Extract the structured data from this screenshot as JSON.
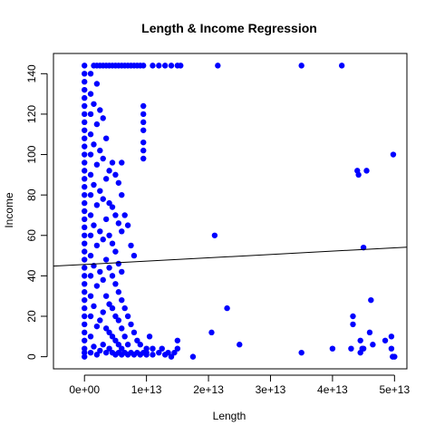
{
  "chart_data": {
    "type": "scatter",
    "title": "Length & Income Regression",
    "xlabel": "Length",
    "ylabel": "Income",
    "xlim": [
      -5000000000000.0,
      52000000000000.0
    ],
    "ylim": [
      -6,
      150
    ],
    "x_ticks": [
      0,
      10000000000000.0,
      20000000000000.0,
      30000000000000.0,
      40000000000000.0,
      50000000000000.0
    ],
    "x_tick_labels": [
      "0e+00",
      "1e+13",
      "2e+13",
      "3e+13",
      "4e+13",
      "5e+13"
    ],
    "y_ticks": [
      0,
      20,
      40,
      60,
      80,
      100,
      120,
      140
    ],
    "y_tick_labels": [
      "0",
      "20",
      "40",
      "60",
      "80",
      "100",
      "120",
      "140"
    ],
    "grid": false,
    "legend": "none",
    "point_color": "#0000ff",
    "line_color": "#000000",
    "regression_line": {
      "x": [
        -5000000000000.0,
        52000000000000.0
      ],
      "y": [
        44.8,
        54.2
      ]
    },
    "series": [
      {
        "points": [
          [
            0,
            0
          ],
          [
            0,
            2
          ],
          [
            0,
            4
          ],
          [
            0,
            8
          ],
          [
            0,
            12
          ],
          [
            0,
            16
          ],
          [
            0,
            20
          ],
          [
            0,
            24
          ],
          [
            0,
            28
          ],
          [
            0,
            32
          ],
          [
            0,
            36
          ],
          [
            0,
            40
          ],
          [
            0,
            44
          ],
          [
            0,
            48
          ],
          [
            0,
            52
          ],
          [
            0,
            56
          ],
          [
            0,
            60
          ],
          [
            0,
            64
          ],
          [
            0,
            68
          ],
          [
            0,
            72
          ],
          [
            0,
            76
          ],
          [
            0,
            80
          ],
          [
            0,
            84
          ],
          [
            0,
            88
          ],
          [
            0,
            92
          ],
          [
            0,
            96
          ],
          [
            0,
            100
          ],
          [
            0,
            104
          ],
          [
            0,
            108
          ],
          [
            0,
            112
          ],
          [
            0,
            116
          ],
          [
            0,
            120
          ],
          [
            0,
            124
          ],
          [
            0,
            128
          ],
          [
            0,
            132
          ],
          [
            0,
            136
          ],
          [
            0,
            140
          ],
          [
            0,
            144
          ],
          [
            1000000000000.0,
            2
          ],
          [
            1000000000000.0,
            10
          ],
          [
            1000000000000.0,
            20
          ],
          [
            1000000000000.0,
            30
          ],
          [
            1000000000000.0,
            40
          ],
          [
            1000000000000.0,
            50
          ],
          [
            1000000000000.0,
            60
          ],
          [
            1000000000000.0,
            70
          ],
          [
            1000000000000.0,
            80
          ],
          [
            1000000000000.0,
            90
          ],
          [
            1000000000000.0,
            100
          ],
          [
            1000000000000.0,
            110
          ],
          [
            1000000000000.0,
            120
          ],
          [
            1000000000000.0,
            130
          ],
          [
            1000000000000.0,
            140
          ],
          [
            1500000000000.0,
            5
          ],
          [
            1500000000000.0,
            25
          ],
          [
            1500000000000.0,
            45
          ],
          [
            1500000000000.0,
            65
          ],
          [
            1500000000000.0,
            85
          ],
          [
            1500000000000.0,
            105
          ],
          [
            1500000000000.0,
            125
          ],
          [
            1500000000000.0,
            144
          ],
          [
            2000000000000.0,
            1
          ],
          [
            2000000000000.0,
            15
          ],
          [
            2000000000000.0,
            35
          ],
          [
            2000000000000.0,
            55
          ],
          [
            2000000000000.0,
            75
          ],
          [
            2000000000000.0,
            95
          ],
          [
            2000000000000.0,
            115
          ],
          [
            2000000000000.0,
            135
          ],
          [
            2000000000000.0,
            144
          ],
          [
            2500000000000.0,
            3
          ],
          [
            2500000000000.0,
            18
          ],
          [
            2500000000000.0,
            42
          ],
          [
            2500000000000.0,
            62
          ],
          [
            2500000000000.0,
            82
          ],
          [
            2500000000000.0,
            102
          ],
          [
            2500000000000.0,
            122
          ],
          [
            2500000000000.0,
            144
          ],
          [
            3000000000000.0,
            6
          ],
          [
            3000000000000.0,
            22
          ],
          [
            3000000000000.0,
            38
          ],
          [
            3000000000000.0,
            58
          ],
          [
            3000000000000.0,
            78
          ],
          [
            3000000000000.0,
            98
          ],
          [
            3000000000000.0,
            118
          ],
          [
            3000000000000.0,
            144
          ],
          [
            3500000000000.0,
            2
          ],
          [
            3500000000000.0,
            14
          ],
          [
            3500000000000.0,
            30
          ],
          [
            3500000000000.0,
            48
          ],
          [
            3500000000000.0,
            68
          ],
          [
            3500000000000.0,
            88
          ],
          [
            3500000000000.0,
            108
          ],
          [
            3500000000000.0,
            144
          ],
          [
            4000000000000.0,
            4
          ],
          [
            4000000000000.0,
            12
          ],
          [
            4000000000000.0,
            26
          ],
          [
            4000000000000.0,
            44
          ],
          [
            4000000000000.0,
            60
          ],
          [
            4000000000000.0,
            76
          ],
          [
            4000000000000.0,
            92
          ],
          [
            4000000000000.0,
            144
          ],
          [
            4500000000000.0,
            2
          ],
          [
            4500000000000.0,
            10
          ],
          [
            4500000000000.0,
            24
          ],
          [
            4500000000000.0,
            40
          ],
          [
            4500000000000.0,
            56
          ],
          [
            4500000000000.0,
            74
          ],
          [
            4500000000000.0,
            96
          ],
          [
            4500000000000.0,
            144
          ],
          [
            5000000000000.0,
            1
          ],
          [
            5000000000000.0,
            8
          ],
          [
            5000000000000.0,
            20
          ],
          [
            5000000000000.0,
            36
          ],
          [
            5000000000000.0,
            52
          ],
          [
            5000000000000.0,
            70
          ],
          [
            5000000000000.0,
            90
          ],
          [
            5000000000000.0,
            144
          ],
          [
            5500000000000.0,
            2
          ],
          [
            5500000000000.0,
            6
          ],
          [
            5500000000000.0,
            18
          ],
          [
            5500000000000.0,
            32
          ],
          [
            5500000000000.0,
            46
          ],
          [
            5500000000000.0,
            66
          ],
          [
            5500000000000.0,
            86
          ],
          [
            5500000000000.0,
            144
          ],
          [
            6000000000000.0,
            1
          ],
          [
            6000000000000.0,
            4
          ],
          [
            6000000000000.0,
            14
          ],
          [
            6000000000000.0,
            28
          ],
          [
            6000000000000.0,
            42
          ],
          [
            6000000000000.0,
            62
          ],
          [
            6000000000000.0,
            80
          ],
          [
            6000000000000.0,
            96
          ],
          [
            6000000000000.0,
            144
          ],
          [
            6500000000000.0,
            2
          ],
          [
            6500000000000.0,
            10
          ],
          [
            6500000000000.0,
            24
          ],
          [
            6500000000000.0,
            70
          ],
          [
            6500000000000.0,
            144
          ],
          [
            7000000000000.0,
            1
          ],
          [
            7000000000000.0,
            6
          ],
          [
            7000000000000.0,
            20
          ],
          [
            7000000000000.0,
            65
          ],
          [
            7000000000000.0,
            144
          ],
          [
            7500000000000.0,
            2
          ],
          [
            7500000000000.0,
            16
          ],
          [
            7500000000000.0,
            55
          ],
          [
            7500000000000.0,
            144
          ],
          [
            8000000000000.0,
            1
          ],
          [
            8000000000000.0,
            12
          ],
          [
            8000000000000.0,
            50
          ],
          [
            8000000000000.0,
            144
          ],
          [
            8500000000000.0,
            2
          ],
          [
            8500000000000.0,
            8
          ],
          [
            8500000000000.0,
            144
          ],
          [
            9000000000000.0,
            1
          ],
          [
            9000000000000.0,
            6
          ],
          [
            9000000000000.0,
            144
          ],
          [
            9500000000000.0,
            2
          ],
          [
            9500000000000.0,
            98
          ],
          [
            9500000000000.0,
            102
          ],
          [
            9500000000000.0,
            106
          ],
          [
            9500000000000.0,
            112
          ],
          [
            9500000000000.0,
            116
          ],
          [
            9500000000000.0,
            120
          ],
          [
            9500000000000.0,
            124
          ],
          [
            9500000000000.0,
            144
          ],
          [
            10000000000000.0,
            1
          ],
          [
            10000000000000.0,
            2
          ],
          [
            10000000000000.0,
            4
          ],
          [
            10500000000000.0,
            10
          ],
          [
            11000000000000.0,
            1
          ],
          [
            11000000000000.0,
            4
          ],
          [
            11000000000000.0,
            144
          ],
          [
            12000000000000.0,
            2
          ],
          [
            12000000000000.0,
            144
          ],
          [
            12500000000000.0,
            4
          ],
          [
            13000000000000.0,
            1
          ],
          [
            13000000000000.0,
            144
          ],
          [
            13500000000000.0,
            2
          ],
          [
            14000000000000.0,
            0
          ],
          [
            14000000000000.0,
            144
          ],
          [
            14500000000000.0,
            2
          ],
          [
            15000000000000.0,
            4
          ],
          [
            15000000000000.0,
            8
          ],
          [
            15000000000000.0,
            144
          ],
          [
            15500000000000.0,
            144
          ],
          [
            17500000000000.0,
            0
          ],
          [
            20500000000000.0,
            12
          ],
          [
            21000000000000.0,
            60
          ],
          [
            21500000000000.0,
            144
          ],
          [
            23000000000000.0,
            24
          ],
          [
            25000000000000.0,
            6
          ],
          [
            35000000000000.0,
            2
          ],
          [
            35000000000000.0,
            144
          ],
          [
            40000000000000.0,
            4
          ],
          [
            41500000000000.0,
            144
          ],
          [
            43000000000000.0,
            4
          ],
          [
            43300000000000.0,
            16
          ],
          [
            43300000000000.0,
            20
          ],
          [
            44000000000000.0,
            92
          ],
          [
            44200000000000.0,
            90
          ],
          [
            44500000000000.0,
            2
          ],
          [
            44500000000000.0,
            8
          ],
          [
            44800000000000.0,
            4
          ],
          [
            45000000000000.0,
            54
          ],
          [
            45000000000000.0,
            4
          ],
          [
            45500000000000.0,
            92
          ],
          [
            46000000000000.0,
            12
          ],
          [
            46200000000000.0,
            28
          ],
          [
            46500000000000.0,
            6
          ],
          [
            48500000000000.0,
            8
          ],
          [
            49500000000000.0,
            10
          ],
          [
            49500000000000.0,
            4
          ],
          [
            49700000000000.0,
            0
          ],
          [
            49800000000000.0,
            100
          ],
          [
            50000000000000.0,
            0
          ]
        ]
      }
    ]
  }
}
